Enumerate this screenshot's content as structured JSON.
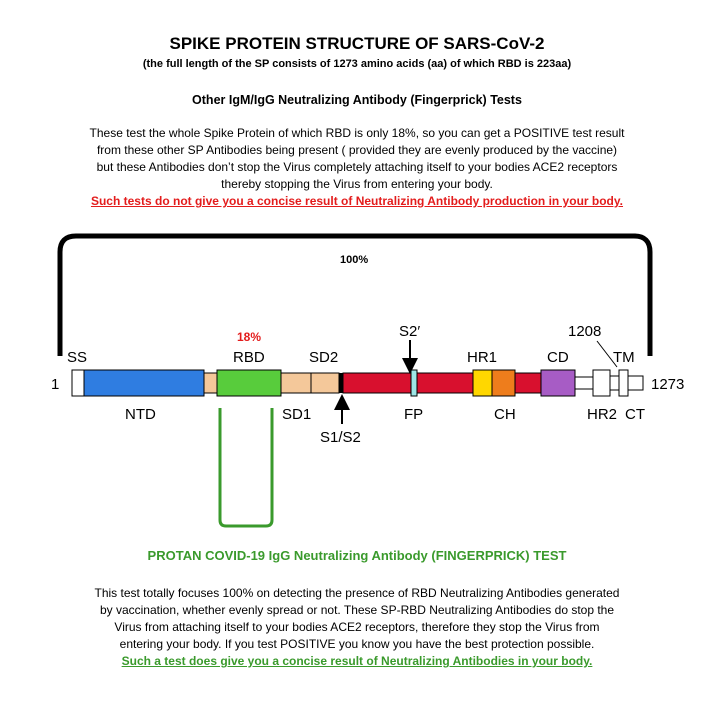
{
  "header": {
    "title": "SPIKE PROTEIN STRUCTURE OF SARS-CoV-2",
    "subtitle": "(the full length of the SP consists of 1273 amino acids (aa) of which RBD is 223aa)",
    "section_title": "Other IgM/IgG Neutralizing Antibody (Fingerprick) Tests"
  },
  "intro": {
    "lines": [
      "These test the whole Spike Protein of which RBD is only 18%, so you can get a POSITIVE test result",
      "from these other SP Antibodies being present ( provided they are evenly produced by the vaccine)",
      "but these Antibodies don’t stop the Virus completely attaching itself to your bodies ACE2 receptors",
      "thereby stopping the Virus from entering your body."
    ],
    "warning": "Such tests do not give you a concise result of Neutralizing Antibody production in your body."
  },
  "diagram": {
    "percent_full": "100%",
    "percent_rbd": "18%",
    "start_residue": "1",
    "end_residue": "1273",
    "marker_1208": "1208",
    "labels_top": {
      "ss": "SS",
      "rbd": "RBD",
      "sd2": "SD2",
      "s2prime": "S2′",
      "hr1": "HR1",
      "cd": "CD",
      "tm": "TM"
    },
    "labels_bottom": {
      "ntd": "NTD",
      "sd1": "SD1",
      "s1s2": "S1/S2",
      "fp": "FP",
      "ch": "CH",
      "hr2": "HR2",
      "ct": "CT"
    },
    "colors": {
      "ntd": "#2f7de1",
      "rbd": "#58cc3c",
      "sd": "#f4c89a",
      "s2": "#d8102e",
      "fp": "#9ee6e6",
      "hr1": "#ffd700",
      "ch": "#ee7d1c",
      "cd": "#a75cc5",
      "bracket_black": "#000000",
      "bracket_green": "#3a9a2c"
    }
  },
  "protan": {
    "title": "PROTAN COVID-19 IgG Neutralizing Antibody (FINGERPRICK) TEST",
    "lines": [
      "This test totally focuses 100% on detecting the presence of RBD Neutralizing Antibodies generated",
      "by  vaccination, whether evenly spread or not. These SP-RBD Neutralizing Antibodies do stop the",
      "Virus from attaching itself to your bodies ACE2 receptors, therefore they stop the Virus from",
      "entering your body. If you test POSITIVE you know you have the best protection possible."
    ],
    "conclusion": "Such a test does give you a concise result of Neutralizing Antibodies in your body."
  }
}
